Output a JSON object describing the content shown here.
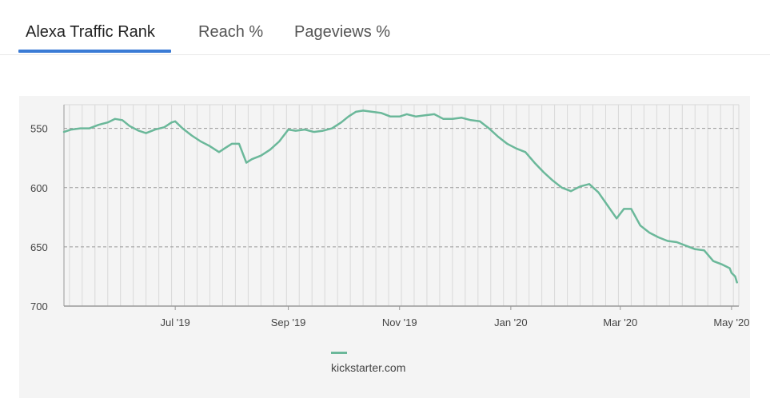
{
  "tabs": [
    {
      "label": "Alexa Traffic Rank",
      "active": true
    },
    {
      "label": "Reach %",
      "active": false
    },
    {
      "label": "Pageviews %",
      "active": false
    }
  ],
  "colors": {
    "accent": "#3a7bd5",
    "series": "#6bb89a",
    "grid": "#d9d9d9",
    "dashed": "#999999",
    "panel": "#f4f4f4"
  },
  "chart_data": {
    "type": "line",
    "title": "",
    "xlabel": "",
    "ylabel": "",
    "y_reversed": true,
    "ylim": [
      530,
      700
    ],
    "yticks": [
      550,
      600,
      650,
      700
    ],
    "xlim": [
      "2019-05-01",
      "2020-05-05"
    ],
    "xticks": [
      {
        "date": "2019-07-01",
        "label": "Jul '19"
      },
      {
        "date": "2019-09-01",
        "label": "Sep '19"
      },
      {
        "date": "2019-11-01",
        "label": "Nov '19"
      },
      {
        "date": "2020-01-01",
        "label": "Jan '20"
      },
      {
        "date": "2020-03-01",
        "label": "Mar '20"
      },
      {
        "date": "2020-05-01",
        "label": "May '20"
      }
    ],
    "grid": "vertical weekly lines, dashed horizontal",
    "legend_position": "bottom",
    "series": [
      {
        "name": "kickstarter.com",
        "color": "#6bb89a",
        "points": [
          [
            "2019-05-01",
            553
          ],
          [
            "2019-05-05",
            551
          ],
          [
            "2019-05-10",
            550
          ],
          [
            "2019-05-15",
            550
          ],
          [
            "2019-05-20",
            547
          ],
          [
            "2019-05-25",
            545
          ],
          [
            "2019-05-29",
            542
          ],
          [
            "2019-06-02",
            543
          ],
          [
            "2019-06-06",
            548
          ],
          [
            "2019-06-11",
            552
          ],
          [
            "2019-06-15",
            554
          ],
          [
            "2019-06-20",
            551
          ],
          [
            "2019-06-25",
            549
          ],
          [
            "2019-06-29",
            545
          ],
          [
            "2019-07-01",
            544
          ],
          [
            "2019-07-05",
            550
          ],
          [
            "2019-07-10",
            556
          ],
          [
            "2019-07-15",
            561
          ],
          [
            "2019-07-20",
            565
          ],
          [
            "2019-07-25",
            570
          ],
          [
            "2019-07-28",
            567
          ],
          [
            "2019-08-01",
            563
          ],
          [
            "2019-08-05",
            563
          ],
          [
            "2019-08-09",
            579
          ],
          [
            "2019-08-12",
            576
          ],
          [
            "2019-08-17",
            573
          ],
          [
            "2019-08-22",
            568
          ],
          [
            "2019-08-27",
            561
          ],
          [
            "2019-09-01",
            551
          ],
          [
            "2019-09-05",
            552
          ],
          [
            "2019-09-10",
            551
          ],
          [
            "2019-09-15",
            553
          ],
          [
            "2019-09-20",
            552
          ],
          [
            "2019-09-25",
            550
          ],
          [
            "2019-09-30",
            545
          ],
          [
            "2019-10-04",
            540
          ],
          [
            "2019-10-08",
            536
          ],
          [
            "2019-10-12",
            535
          ],
          [
            "2019-10-17",
            536
          ],
          [
            "2019-10-22",
            537
          ],
          [
            "2019-10-27",
            540
          ],
          [
            "2019-11-01",
            540
          ],
          [
            "2019-11-05",
            538
          ],
          [
            "2019-11-10",
            540
          ],
          [
            "2019-11-15",
            539
          ],
          [
            "2019-11-20",
            538
          ],
          [
            "2019-11-25",
            542
          ],
          [
            "2019-11-30",
            542
          ],
          [
            "2019-12-05",
            541
          ],
          [
            "2019-12-10",
            543
          ],
          [
            "2019-12-15",
            544
          ],
          [
            "2019-12-20",
            550
          ],
          [
            "2019-12-25",
            557
          ],
          [
            "2019-12-30",
            563
          ],
          [
            "2020-01-04",
            567
          ],
          [
            "2020-01-09",
            570
          ],
          [
            "2020-01-14",
            579
          ],
          [
            "2020-01-19",
            587
          ],
          [
            "2020-01-24",
            594
          ],
          [
            "2020-01-29",
            600
          ],
          [
            "2020-02-03",
            603
          ],
          [
            "2020-02-08",
            599
          ],
          [
            "2020-02-13",
            597
          ],
          [
            "2020-02-18",
            604
          ],
          [
            "2020-02-23",
            615
          ],
          [
            "2020-02-28",
            626
          ],
          [
            "2020-03-03",
            618
          ],
          [
            "2020-03-07",
            618
          ],
          [
            "2020-03-12",
            632
          ],
          [
            "2020-03-17",
            638
          ],
          [
            "2020-03-22",
            642
          ],
          [
            "2020-03-27",
            645
          ],
          [
            "2020-04-01",
            646
          ],
          [
            "2020-04-06",
            649
          ],
          [
            "2020-04-11",
            652
          ],
          [
            "2020-04-16",
            653
          ],
          [
            "2020-04-21",
            662
          ],
          [
            "2020-04-26",
            665
          ],
          [
            "2020-04-30",
            668
          ],
          [
            "2020-05-01",
            672
          ],
          [
            "2020-05-03",
            675
          ],
          [
            "2020-05-04",
            680
          ]
        ]
      }
    ]
  }
}
